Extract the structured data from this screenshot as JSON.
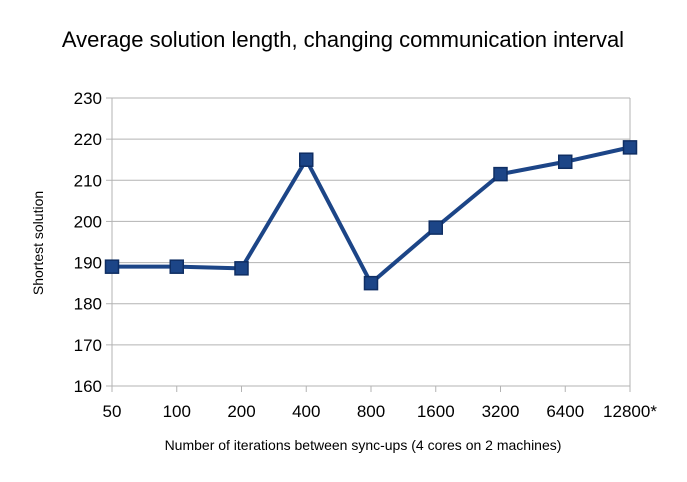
{
  "chart_data": {
    "type": "line",
    "title": "Average solution length, changing communication interval",
    "xlabel": "Number of iterations between sync-ups (4 cores on 2 machines)",
    "ylabel": "Shortest solution",
    "categories": [
      "50",
      "100",
      "200",
      "400",
      "800",
      "1600",
      "3200",
      "6400",
      "12800*"
    ],
    "ylim": [
      160,
      230
    ],
    "yticks": [
      160,
      170,
      180,
      190,
      200,
      210,
      220,
      230
    ],
    "grid": true,
    "series": [
      {
        "name": "Shortest solution",
        "values": [
          189,
          189,
          188.6,
          215,
          185,
          198.5,
          211.5,
          214.5,
          218
        ],
        "color": "#1c4587",
        "marker": "square"
      }
    ]
  }
}
